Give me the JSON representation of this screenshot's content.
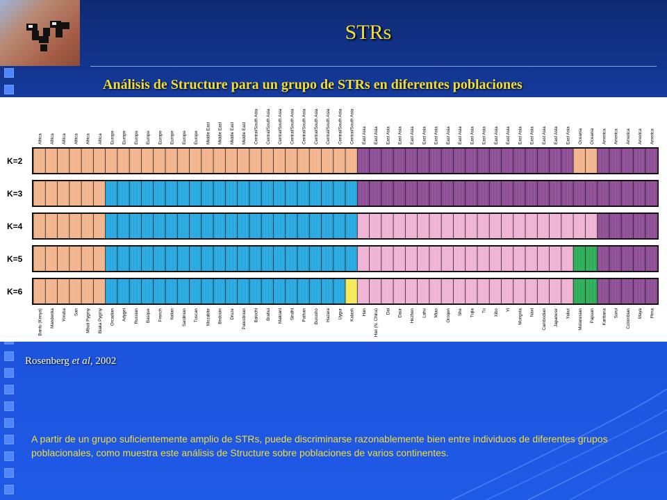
{
  "slide": {
    "title": "STRs",
    "subtitle": "Análisis de Structure para un grupo de STRs en diferentes poblaciones",
    "citation_author": "Rosenberg",
    "citation_etal": "et al",
    "citation_year": ", 2002",
    "caption": "A partir de un grupo suficientemente amplio de STRs, puede discriminarse razonablemente bien entre individuos de diferentes grupos poblacionales, como muestra este análisis de Structure sobre poblaciones de varios continentes."
  },
  "figure": {
    "k_labels": [
      "K=2",
      "K=3",
      "K=4",
      "K=5",
      "K=6"
    ],
    "regions": [
      "Africa",
      "Africa",
      "Africa",
      "Africa",
      "Africa",
      "Africa",
      "Europe",
      "Europe",
      "Europe",
      "Europe",
      "Europe",
      "Europe",
      "Europe",
      "Europe",
      "Middle East",
      "Middle East",
      "Middle East",
      "Middle East",
      "Central/South Asia",
      "Central/South Asia",
      "Central/South Asia",
      "Central/South Asia",
      "Central/South Asia",
      "Central/South Asia",
      "Central/South Asia",
      "Central/South Asia",
      "Central/South Asia",
      "East Asia",
      "East Asia",
      "East Asia",
      "East Asia",
      "East Asia",
      "East Asia",
      "East Asia",
      "East Asia",
      "East Asia",
      "East Asia",
      "East Asia",
      "East Asia",
      "East Asia",
      "East Asia",
      "East Asia",
      "East Asia",
      "East Asia",
      "East Asia",
      "Oceania",
      "Oceania",
      "America",
      "America",
      "America",
      "America",
      "America"
    ],
    "populations": [
      "Bantu (Kenya)",
      "Mandenka",
      "Yoruba",
      "San",
      "Mbuti Pygmy",
      "Biaka Pygmy",
      "Orcadian",
      "Adygei",
      "Russian",
      "Basque",
      "French",
      "Italian",
      "Sardinian",
      "Tuscan",
      "Mozabite",
      "Bedouin",
      "Druze",
      "Palestinian",
      "Balochi",
      "Brahui",
      "Makrani",
      "Sindhi",
      "Pathan",
      "Burusho",
      "Hazara",
      "Uygur",
      "Kalash",
      "Han",
      "Han (N. China)",
      "Dai",
      "Daur",
      "Hezhen",
      "Lahu",
      "Miao",
      "Oroqen",
      "She",
      "Tujia",
      "Tu",
      "Xibo",
      "Yi",
      "Mongola",
      "Naxi",
      "Cambodian",
      "Japanese",
      "Yakut",
      "Melanesian",
      "Papuan",
      "Karitiana",
      "Surui",
      "Colombian",
      "Maya",
      "Pima"
    ]
  },
  "colors": {
    "africa": "#f2b58e",
    "europe": "#29a9e0",
    "eastasia": "#efb3d3",
    "america": "#8e4f96",
    "oceania": "#2fae59",
    "kalash": "#f2ea5a",
    "title": "#f2de3a"
  },
  "icons": {
    "logo": "university-logo-icon"
  }
}
